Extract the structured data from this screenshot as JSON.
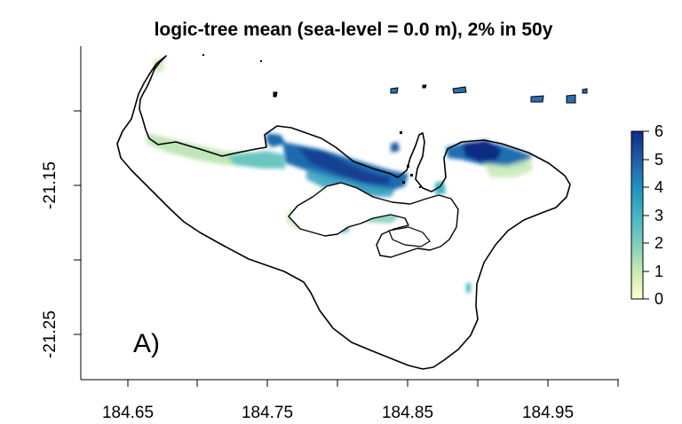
{
  "title": "logic-tree mean (sea-level = 0.0 m), 2% in 50y",
  "panel_label": "A)",
  "x_ticks": [
    "184.65",
    "184.75",
    "184.85",
    "184.95"
  ],
  "y_ticks": [
    "-21.15",
    "-21.25"
  ],
  "legend": {
    "labels": [
      "0",
      "1",
      "2",
      "3",
      "4",
      "5",
      "6"
    ],
    "colors": [
      "#ffffcc",
      "#c7e9b4",
      "#7fcdbb",
      "#41b6c4",
      "#1d91c0",
      "#225ea8",
      "#0c2c84"
    ]
  },
  "colors": {
    "coast": "#000000",
    "background": "#ffffff"
  },
  "chart_data": {
    "type": "heatmap",
    "title": "logic-tree mean (sea-level = 0.0 m), 2% in 50y",
    "xlabel": "",
    "ylabel": "",
    "x_ticks": [
      184.65,
      184.75,
      184.85,
      184.95
    ],
    "y_ticks": [
      -21.15,
      -21.25
    ],
    "colorbar_range": [
      0,
      6
    ],
    "colorbar_ticks": [
      0,
      1,
      2,
      3,
      4,
      5,
      6
    ],
    "legend_position": "right"
  }
}
